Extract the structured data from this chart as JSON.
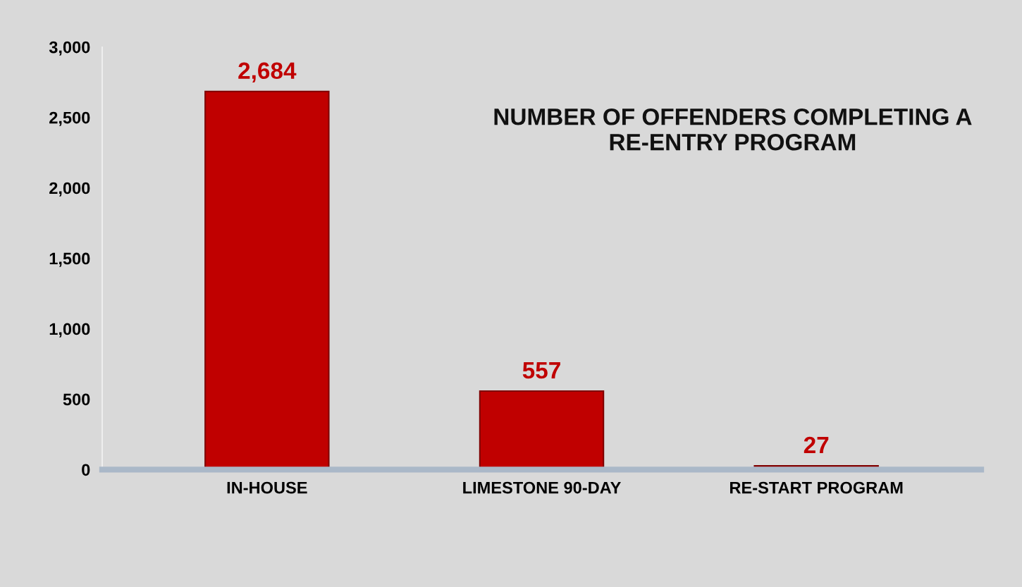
{
  "chart_data": {
    "type": "bar",
    "title": "NUMBER OF OFFENDERS COMPLETING A\nRE-ENTRY PROGRAM",
    "categories": [
      "IN-HOUSE",
      "LIMESTONE 90-DAY",
      "RE-START PROGRAM"
    ],
    "values": [
      2684,
      557,
      27
    ],
    "value_labels": [
      "2,684",
      "557",
      "27"
    ],
    "color": "#c00000",
    "ylim": [
      0,
      3000
    ],
    "yticks": [
      {
        "value": 0,
        "label": "0"
      },
      {
        "value": 500,
        "label": "500"
      },
      {
        "value": 1000,
        "label": "1,000"
      },
      {
        "value": 1500,
        "label": "1,500"
      },
      {
        "value": 2000,
        "label": "2,000"
      },
      {
        "value": 2500,
        "label": "2,500"
      },
      {
        "value": 3000,
        "label": "3,000"
      }
    ],
    "grid": false,
    "legend": false
  }
}
